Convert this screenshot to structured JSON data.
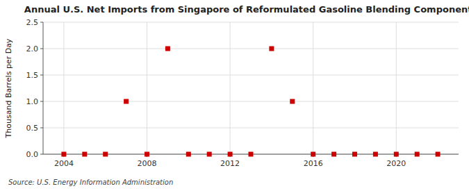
{
  "chart_data": {
    "type": "scatter",
    "title": "Annual U.S. Net Imports from Singapore of Reformulated Gasoline Blending Components",
    "ylabel": "Thousand Barrels per Day",
    "source": "Source: U.S. Energy Information Administration",
    "x": [
      2004,
      2005,
      2006,
      2007,
      2008,
      2009,
      2010,
      2011,
      2012,
      2013,
      2014,
      2015,
      2016,
      2017,
      2018,
      2019,
      2020,
      2021,
      2022
    ],
    "values": [
      0.0,
      0.0,
      0.0,
      1.0,
      0.0,
      2.0,
      0.0,
      0.0,
      0.0,
      0.0,
      2.0,
      1.0,
      0.0,
      0.0,
      0.0,
      0.0,
      0.0,
      0.0,
      0.0
    ],
    "color": "#cc0000",
    "marker": "square",
    "xlim": [
      2003.0,
      2023.0
    ],
    "xticks": [
      2004,
      2008,
      2012,
      2016,
      2020
    ],
    "ylim": [
      0,
      2.5
    ],
    "yticks": [
      {
        "value": 0,
        "label": "0.0"
      },
      0.5,
      {
        "value": 1,
        "label": "1.0"
      },
      1.5,
      {
        "value": 2,
        "label": "2.0"
      },
      2.5
    ],
    "grid": true
  }
}
